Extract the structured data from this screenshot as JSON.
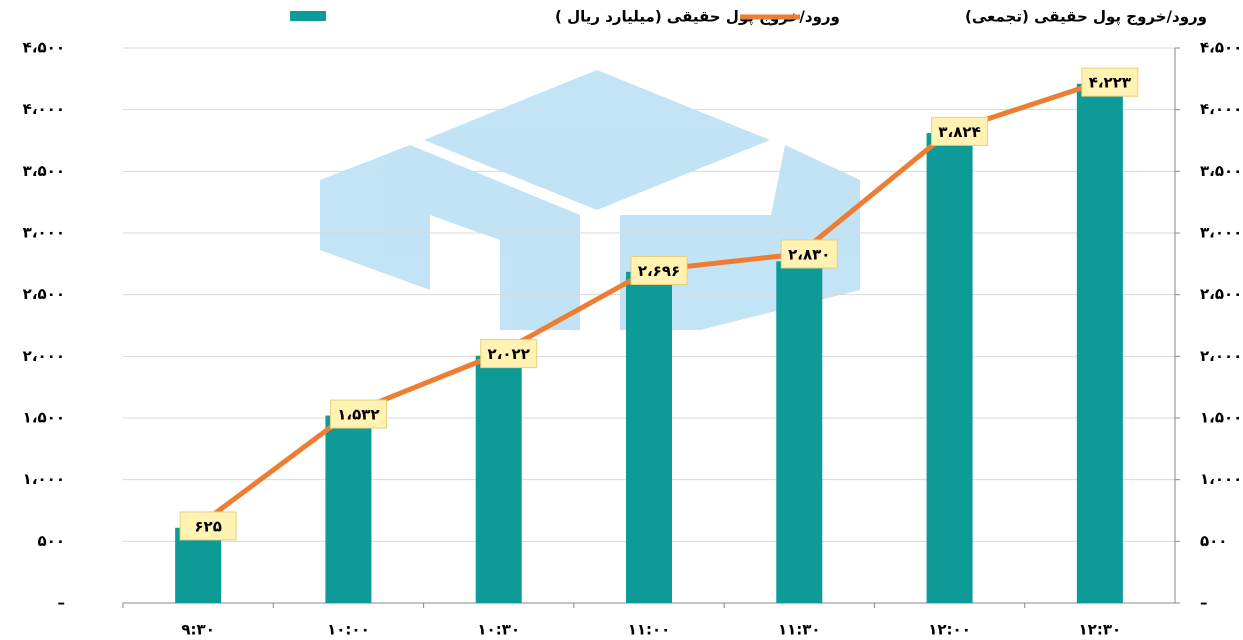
{
  "chart_data": {
    "type": "bar_line",
    "categories": [
      "۹:۳۰",
      "۱۰:۰۰",
      "۱۰:۳۰",
      "۱۱:۰۰",
      "۱۱:۳۰",
      "۱۲:۰۰",
      "۱۲:۳۰"
    ],
    "series": [
      {
        "name": "ورود/خروج پول حقیقی (میلیارد ریال )",
        "type": "bar",
        "color": "#0e9b98",
        "axis": "y",
        "values": [
          610,
          1520,
          2005,
          2685,
          2770,
          3810,
          4210
        ]
      },
      {
        "name": "ورود/خروج پول حقیقی (تجمعی)",
        "type": "line",
        "color": "#ed7d31",
        "axis": "y2",
        "values": [
          625,
          1532,
          2022,
          2696,
          2830,
          3824,
          4223
        ],
        "value_labels": [
          "۶۲۵",
          "۱،۵۳۲",
          "۲،۰۲۲",
          "۲،۶۹۶",
          "۲،۸۳۰",
          "۳،۸۲۴",
          "۴،۲۲۳"
        ]
      }
    ],
    "ylim": [
      0,
      4500
    ],
    "yticks": [
      {
        "value": 0,
        "label": "–"
      },
      {
        "value": 500,
        "label": "۵۰۰"
      },
      {
        "value": 1000,
        "label": "۱،۰۰۰"
      },
      {
        "value": 1500,
        "label": "۱،۵۰۰"
      },
      {
        "value": 2000,
        "label": "۲،۰۰۰"
      },
      {
        "value": 2500,
        "label": "۲،۵۰۰"
      },
      {
        "value": 3000,
        "label": "۳،۰۰۰"
      },
      {
        "value": 3500,
        "label": "۳،۵۰۰"
      },
      {
        "value": 4000,
        "label": "۴،۰۰۰"
      },
      {
        "value": 4500,
        "label": "۴،۵۰۰"
      }
    ],
    "y2lim": [
      0,
      4500
    ],
    "y2ticks": [
      {
        "value": 0,
        "label": "–"
      },
      {
        "value": 500,
        "label": "۵۰۰"
      },
      {
        "value": 1000,
        "label": "۱،۰۰۰"
      },
      {
        "value": 1500,
        "label": "۱،۵۰۰"
      },
      {
        "value": 2000,
        "label": "۲،۰۰۰"
      },
      {
        "value": 2500,
        "label": "۲،۵۰۰"
      },
      {
        "value": 3000,
        "label": "۳،۰۰۰"
      },
      {
        "value": 3500,
        "label": "۳،۵۰۰"
      },
      {
        "value": 4000,
        "label": "۴،۰۰۰"
      },
      {
        "value": 4500,
        "label": "۴،۵۰۰"
      }
    ],
    "grid": true
  }
}
